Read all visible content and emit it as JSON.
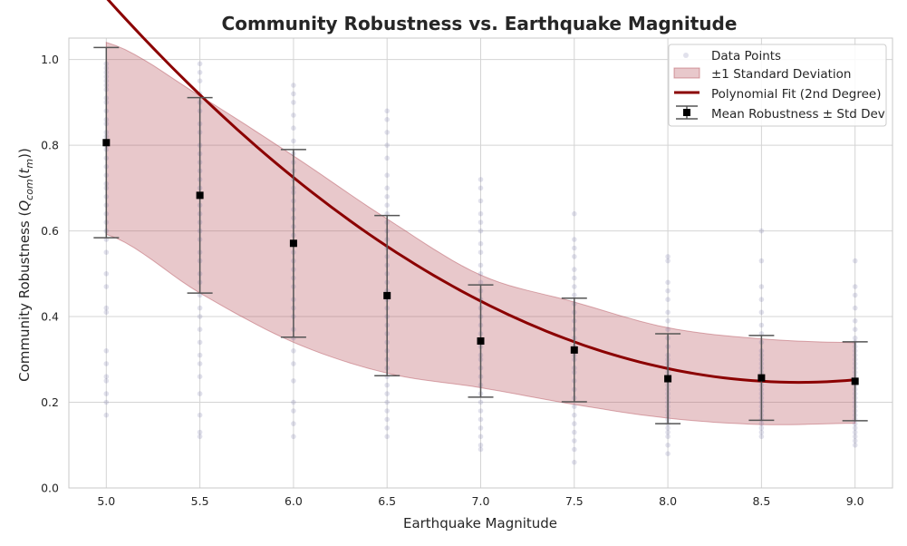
{
  "chart_data": {
    "type": "scatter",
    "title": "Community Robustness vs. Earthquake Magnitude",
    "xlabel": "Earthquake Magnitude",
    "ylabel_main": "Community Robustness (",
    "ylabel_q": "Q",
    "ylabel_sub": "com",
    "ylabel_paren": "(",
    "ylabel_t": "t",
    "ylabel_m": "m",
    "ylabel_end": "))",
    "xlim": [
      4.8,
      9.2
    ],
    "ylim": [
      0.0,
      1.05
    ],
    "xticks": [
      "5.0",
      "5.5",
      "6.0",
      "6.5",
      "7.0",
      "7.5",
      "8.0",
      "8.5",
      "9.0"
    ],
    "yticks": [
      "0.0",
      "0.2",
      "0.4",
      "0.6",
      "0.8",
      "1.0"
    ],
    "grid": true,
    "legend_position": "top-right",
    "legend": [
      {
        "key": "points",
        "label": "Data Points"
      },
      {
        "key": "band",
        "label": "±1 Standard Deviation"
      },
      {
        "key": "fit",
        "label": "Polynomial Fit (2nd Degree)"
      },
      {
        "key": "mean",
        "label": "Mean Robustness ± Std Dev"
      }
    ],
    "colors": {
      "points": "#6a6a9e",
      "band": "#b24a54",
      "fit": "#8b0000",
      "mean": "#000000",
      "errorbar": "#555555"
    },
    "magnitudes": [
      5.0,
      5.5,
      6.0,
      6.5,
      7.0,
      7.5,
      8.0,
      8.5,
      9.0
    ],
    "mean": [
      0.806,
      0.683,
      0.571,
      0.449,
      0.343,
      0.322,
      0.255,
      0.257,
      0.249
    ],
    "std": [
      0.222,
      0.228,
      0.219,
      0.187,
      0.131,
      0.121,
      0.105,
      0.099,
      0.092
    ],
    "band_upper": [
      1.04,
      0.915,
      0.775,
      0.628,
      0.497,
      0.434,
      0.374,
      0.348,
      0.339
    ],
    "band_lower": [
      0.592,
      0.455,
      0.34,
      0.268,
      0.234,
      0.195,
      0.163,
      0.148,
      0.151
    ],
    "poly_fit": {
      "a": 0.06554,
      "b": -1.1405,
      "c": 5.2081
    },
    "points": [
      [
        0.99,
        0.98,
        0.97,
        0.96,
        0.95,
        0.94,
        0.93,
        0.91,
        0.9,
        0.88,
        0.86,
        0.85,
        0.83,
        0.82,
        0.8,
        0.79,
        0.77,
        0.75,
        0.73,
        0.71,
        0.7,
        0.68,
        0.66,
        0.64,
        0.62,
        0.6,
        0.58,
        0.55,
        0.5,
        0.47,
        0.42,
        0.41,
        0.32,
        0.29,
        0.26,
        0.25,
        0.22,
        0.2,
        0.17
      ],
      [
        0.99,
        0.97,
        0.95,
        0.92,
        0.9,
        0.88,
        0.85,
        0.83,
        0.8,
        0.78,
        0.76,
        0.74,
        0.72,
        0.7,
        0.68,
        0.66,
        0.64,
        0.62,
        0.6,
        0.58,
        0.55,
        0.53,
        0.5,
        0.48,
        0.45,
        0.42,
        0.4,
        0.37,
        0.34,
        0.31,
        0.29,
        0.26,
        0.22,
        0.17,
        0.13,
        0.12
      ],
      [
        0.94,
        0.92,
        0.9,
        0.87,
        0.84,
        0.81,
        0.78,
        0.76,
        0.74,
        0.72,
        0.7,
        0.69,
        0.67,
        0.65,
        0.63,
        0.61,
        0.59,
        0.57,
        0.55,
        0.53,
        0.51,
        0.49,
        0.47,
        0.44,
        0.42,
        0.4,
        0.37,
        0.35,
        0.32,
        0.29,
        0.25,
        0.2,
        0.18,
        0.15,
        0.12
      ],
      [
        0.88,
        0.86,
        0.83,
        0.8,
        0.77,
        0.73,
        0.7,
        0.68,
        0.66,
        0.64,
        0.62,
        0.6,
        0.58,
        0.56,
        0.54,
        0.52,
        0.5,
        0.48,
        0.46,
        0.44,
        0.42,
        0.4,
        0.38,
        0.36,
        0.34,
        0.32,
        0.3,
        0.28,
        0.26,
        0.24,
        0.22,
        0.2,
        0.18,
        0.16,
        0.14,
        0.12
      ],
      [
        0.72,
        0.7,
        0.67,
        0.64,
        0.62,
        0.6,
        0.57,
        0.55,
        0.52,
        0.5,
        0.48,
        0.46,
        0.44,
        0.42,
        0.4,
        0.38,
        0.36,
        0.34,
        0.33,
        0.31,
        0.3,
        0.28,
        0.26,
        0.24,
        0.22,
        0.2,
        0.18,
        0.16,
        0.14,
        0.12,
        0.1,
        0.09
      ],
      [
        0.64,
        0.58,
        0.56,
        0.54,
        0.51,
        0.49,
        0.47,
        0.45,
        0.43,
        0.41,
        0.39,
        0.37,
        0.35,
        0.33,
        0.31,
        0.3,
        0.28,
        0.27,
        0.25,
        0.23,
        0.21,
        0.19,
        0.17,
        0.15,
        0.13,
        0.11,
        0.09,
        0.06
      ],
      [
        0.54,
        0.53,
        0.48,
        0.46,
        0.44,
        0.41,
        0.39,
        0.37,
        0.35,
        0.33,
        0.31,
        0.3,
        0.29,
        0.28,
        0.27,
        0.26,
        0.25,
        0.24,
        0.23,
        0.22,
        0.21,
        0.2,
        0.19,
        0.18,
        0.17,
        0.16,
        0.15,
        0.14,
        0.13,
        0.12,
        0.1,
        0.08
      ],
      [
        0.6,
        0.53,
        0.47,
        0.44,
        0.41,
        0.38,
        0.36,
        0.34,
        0.32,
        0.31,
        0.3,
        0.29,
        0.28,
        0.27,
        0.26,
        0.25,
        0.24,
        0.23,
        0.22,
        0.21,
        0.2,
        0.19,
        0.18,
        0.17,
        0.16,
        0.15,
        0.14,
        0.13,
        0.12
      ],
      [
        0.53,
        0.47,
        0.45,
        0.42,
        0.39,
        0.37,
        0.35,
        0.34,
        0.33,
        0.32,
        0.31,
        0.3,
        0.29,
        0.28,
        0.27,
        0.26,
        0.25,
        0.24,
        0.23,
        0.22,
        0.21,
        0.2,
        0.19,
        0.18,
        0.17,
        0.16,
        0.15,
        0.14,
        0.13,
        0.12,
        0.11,
        0.1
      ]
    ]
  }
}
